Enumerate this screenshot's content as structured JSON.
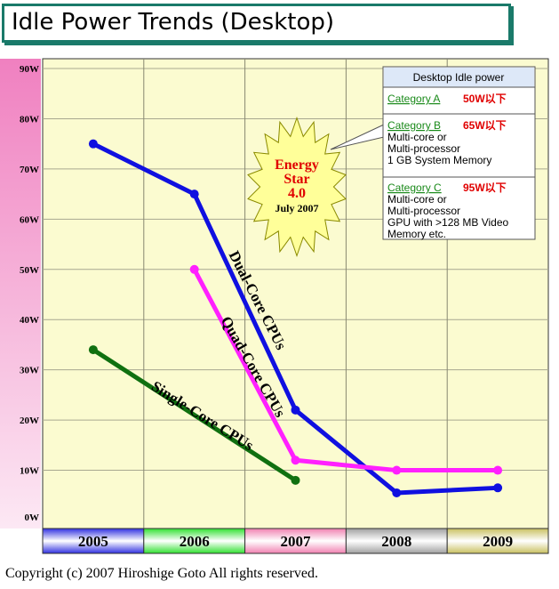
{
  "title": "Idle Power Trends (Desktop)",
  "copyright": "Copyright (c) 2007 Hiroshige Goto All rights reserved.",
  "colors": {
    "plot_bg": "#fbfbd0",
    "left_band_top": "#f080c0",
    "left_band_bottom": "#fce8f4",
    "dual_core": "#1010e0",
    "quad_core": "#ff20ff",
    "single_core": "#107010",
    "star_fill": "#ffff99",
    "star_text": "#e00000",
    "legend_header_bg": "#dde8f8",
    "category_green": "#1a8a1a",
    "watt_red": "#e00000"
  },
  "chart_data": {
    "type": "line",
    "categories": [
      "2005",
      "2006",
      "2007",
      "2008",
      "2009"
    ],
    "category_colors": [
      "#3030e0",
      "#30e030",
      "#f080b0",
      "#a0a0a0",
      "#c8c060"
    ],
    "yticks": [
      "0W",
      "10W",
      "20W",
      "30W",
      "40W",
      "50W",
      "60W",
      "70W",
      "80W",
      "90W"
    ],
    "ylim": [
      0,
      90
    ],
    "grid": true,
    "series": [
      {
        "name": "Dual-Core CPUs",
        "color": "#1010e0",
        "points": [
          [
            "2005",
            75
          ],
          [
            "2006",
            65
          ],
          [
            "2007",
            22
          ],
          [
            "2008",
            5.5
          ],
          [
            "2009",
            6.5
          ]
        ]
      },
      {
        "name": "Quad-Core CPUs",
        "color": "#ff20ff",
        "points": [
          [
            "2006",
            50
          ],
          [
            "2007",
            12
          ],
          [
            "2008",
            10
          ],
          [
            "2009",
            10
          ]
        ]
      },
      {
        "name": "Single-Core CPUs",
        "color": "#107010",
        "points": [
          [
            "2005",
            34
          ],
          [
            "2007",
            8
          ]
        ]
      }
    ]
  },
  "energy_star": {
    "line1": "Energy",
    "line2": "Star",
    "line3": "4.0",
    "line4": "July 2007"
  },
  "legend": {
    "header": "Desktop Idle power",
    "categories": [
      {
        "name": "Category A",
        "watts": "50W以下",
        "details": []
      },
      {
        "name": "Category B",
        "watts": "65W以下",
        "details": [
          "Multi-core or",
          "Multi-processor",
          "1 GB System Memory"
        ]
      },
      {
        "name": "Category C",
        "watts": "95W以下",
        "details": [
          "Multi-core or",
          "Multi-processor",
          "GPU with >128 MB Video",
          "Memory etc."
        ]
      }
    ]
  }
}
